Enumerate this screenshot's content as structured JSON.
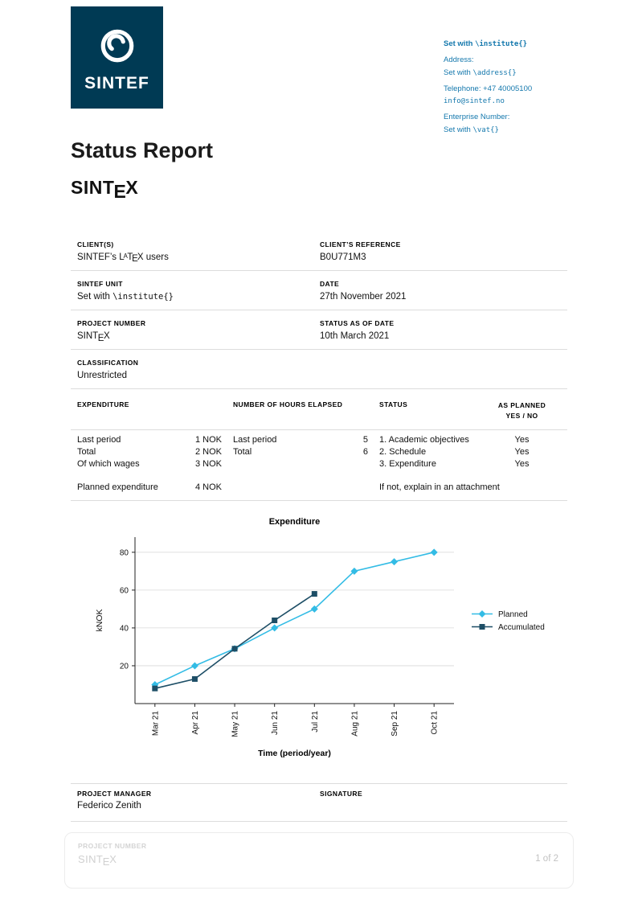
{
  "brand": {
    "name": "SINTEF",
    "navy": "#003a54",
    "link_blue": "#1478ad",
    "planned_color": "#33bce5",
    "accumulated_color": "#1d4e66"
  },
  "contact": {
    "line1_prefix": "Set with ",
    "line1_code": "\\institute{}",
    "address_label": "Address:",
    "address_prefix": "Set with ",
    "address_code": "\\address{}",
    "telephone": "Telephone: +47 40005100",
    "email": "info@sintef.no",
    "enterprise_label": "Enterprise Number:",
    "vat_prefix": "Set with ",
    "vat_code": "\\vat{}"
  },
  "title": "Status Report",
  "sintex": {
    "pre": "SINT",
    "drop": "E",
    "post": "X"
  },
  "latex": {
    "l": "L",
    "a": "A",
    "t": "T",
    "e": "E",
    "x": "X"
  },
  "details": {
    "client_label": "CLIENT(S)",
    "client_prefix": "SINTEF’s ",
    "client_suffix": " users",
    "client_ref_label": "CLIENT’S REFERENCE",
    "client_ref": "B0U771M3",
    "unit_label": "SINTEF UNIT",
    "unit_prefix": "Set with ",
    "unit_code": "\\institute{}",
    "date_label": "DATE",
    "date": "27th November 2021",
    "project_number_label": "PROJECT NUMBER",
    "status_date_label": "STATUS AS OF DATE",
    "status_date": "10th March 2021",
    "classification_label": "CLASSIFICATION",
    "classification": "Unrestricted"
  },
  "status_table": {
    "col1_header": "EXPENDITURE",
    "col2_header": "NUMBER OF HOURS ELAPSED",
    "col3_header": "STATUS",
    "col4_header_line1": "AS PLANNED",
    "col4_header_line2": "YES / NO",
    "expenditure_rows": [
      {
        "label": "Last period",
        "value": "1 NOK"
      },
      {
        "label": "Total",
        "value": "2 NOK"
      },
      {
        "label": "Of which wages",
        "value": "3 NOK"
      }
    ],
    "expenditure_planned": {
      "label": "Planned expenditure",
      "value": "4 NOK"
    },
    "hours_rows": [
      {
        "label": "Last period",
        "value": "5"
      },
      {
        "label": "Total",
        "value": "6"
      }
    ],
    "status_rows": [
      "1. Academic objectives",
      "2. Schedule",
      "3. Expenditure"
    ],
    "status_note": "If not, explain in an attachment",
    "as_planned": [
      "Yes",
      "Yes",
      "Yes"
    ]
  },
  "chart_data": {
    "type": "line",
    "title": "Expenditure",
    "xlabel": "Time (period/year)",
    "ylabel": "kNOK",
    "categories": [
      "Mar 21",
      "Apr 21",
      "May 21",
      "Jun 21",
      "Jul 21",
      "Aug 21",
      "Sep 21",
      "Oct 21"
    ],
    "series": [
      {
        "name": "Planned",
        "color": "#33bce5",
        "marker": "diamond",
        "values": [
          10,
          20,
          29,
          40,
          50,
          70,
          75,
          80
        ]
      },
      {
        "name": "Accumulated",
        "color": "#1d4e66",
        "marker": "square",
        "values": [
          8,
          13,
          29,
          44,
          58
        ]
      }
    ],
    "yticks": [
      20,
      40,
      60,
      80
    ],
    "ylim": [
      0,
      88
    ],
    "grid": true,
    "legend_position": "right"
  },
  "signature": {
    "manager_label": "PROJECT MANAGER",
    "manager": "Federico Zenith",
    "signature_label": "SIGNATURE"
  },
  "footer": {
    "project_number_label": "PROJECT NUMBER",
    "page": "1 of 2"
  }
}
